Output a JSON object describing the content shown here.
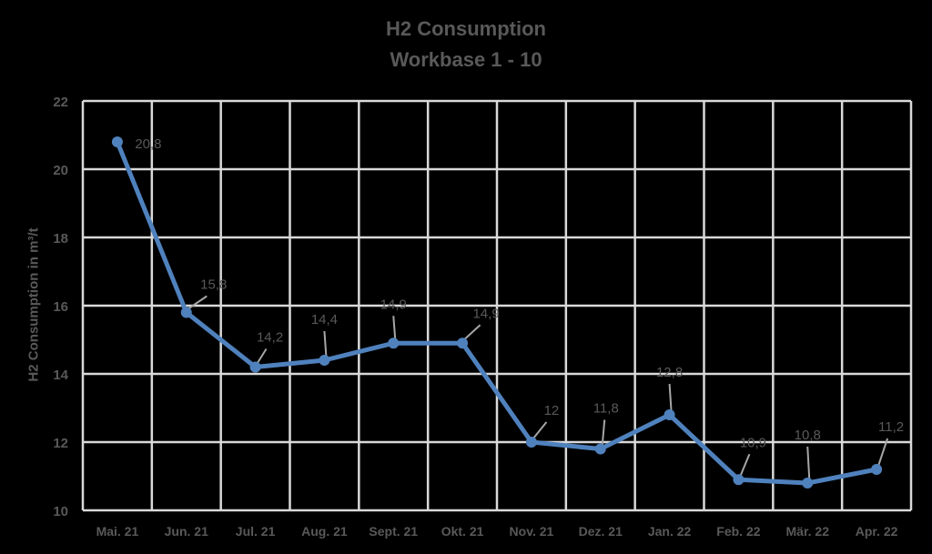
{
  "chart_data": {
    "type": "line",
    "title": "H2 Consumption",
    "subtitle": "Workbase 1 - 10",
    "xlabel": "",
    "ylabel": "H2 Consumption in m³/t",
    "ylim": [
      10,
      22
    ],
    "yticks": [
      10,
      12,
      14,
      16,
      18,
      20,
      22
    ],
    "grid": true,
    "legend": "none",
    "categories": [
      "Mai. 21",
      "Jun. 21",
      "Jul. 21",
      "Aug. 21",
      "Sept. 21",
      "Okt. 21",
      "Nov. 21",
      "Dez. 21",
      "Jan. 22",
      "Feb. 22",
      "Mär. 22",
      "Apr. 22"
    ],
    "series": [
      {
        "name": "H2 Consumption",
        "color": "#4F81BD",
        "values": [
          20.8,
          15.8,
          14.2,
          14.4,
          14.9,
          14.9,
          12,
          11.8,
          12.8,
          10.9,
          10.8,
          11.2
        ],
        "labels": [
          "20,8",
          "15,8",
          "14,2",
          "14,4",
          "14,9",
          "14,9",
          "12",
          "11,8",
          "12,8",
          "10,9",
          "10,8",
          "11,2"
        ]
      }
    ]
  },
  "colors": {
    "background": "#000000",
    "line": "#4F81BD",
    "grid": "#D9D9D9",
    "text": "#595959",
    "leader": "#A6A6A6"
  }
}
